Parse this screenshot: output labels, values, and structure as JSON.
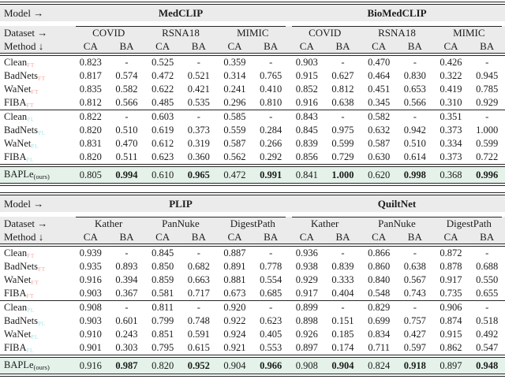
{
  "styles": {
    "header_bg": "#ebebeb",
    "highlight_bg": "#e4f2ea",
    "ft_subscript_color": "#f5a8a2",
    "pl_subscript_color": "#a8e6ea",
    "text_color": "#1c1c1c",
    "rule_color": "#262626"
  },
  "tables": [
    {
      "model_label": "Model →",
      "dataset_label": "Dataset →",
      "method_label": "Method ↓",
      "models": [
        "MedCLIP",
        "BioMedCLIP"
      ],
      "datasets": [
        "COVID",
        "RSNA18",
        "MIMIC",
        "COVID",
        "RSNA18",
        "MIMIC"
      ],
      "metrics": [
        "CA",
        "BA",
        "CA",
        "BA",
        "CA",
        "BA",
        "CA",
        "BA",
        "CA",
        "BA",
        "CA",
        "BA"
      ],
      "groups": [
        {
          "subscript": "FT",
          "color_key": "ft_subscript_color",
          "rows": [
            {
              "method": "Clean",
              "values": [
                "0.823",
                "-",
                "0.525",
                "-",
                "0.359",
                "-",
                "0.903",
                "-",
                "0.470",
                "-",
                "0.426",
                "-"
              ]
            },
            {
              "method": "BadNets",
              "values": [
                "0.817",
                "0.574",
                "0.472",
                "0.521",
                "0.314",
                "0.765",
                "0.915",
                "0.627",
                "0.464",
                "0.830",
                "0.322",
                "0.945"
              ]
            },
            {
              "method": "WaNet",
              "values": [
                "0.835",
                "0.582",
                "0.622",
                "0.421",
                "0.241",
                "0.410",
                "0.852",
                "0.812",
                "0.451",
                "0.653",
                "0.419",
                "0.785"
              ]
            },
            {
              "method": "FIBA",
              "values": [
                "0.812",
                "0.566",
                "0.485",
                "0.535",
                "0.296",
                "0.810",
                "0.916",
                "0.638",
                "0.345",
                "0.566",
                "0.310",
                "0.929"
              ]
            }
          ]
        },
        {
          "subscript": "PL",
          "color_key": "pl_subscript_color",
          "rows": [
            {
              "method": "Clean",
              "values": [
                "0.822",
                "-",
                "0.603",
                "-",
                "0.585",
                "-",
                "0.843",
                "-",
                "0.582",
                "-",
                "0.351",
                "-"
              ]
            },
            {
              "method": "BadNets",
              "values": [
                "0.820",
                "0.510",
                "0.619",
                "0.373",
                "0.559",
                "0.284",
                "0.845",
                "0.975",
                "0.632",
                "0.942",
                "0.373",
                "1.000"
              ]
            },
            {
              "method": "WaNet",
              "values": [
                "0.831",
                "0.470",
                "0.612",
                "0.319",
                "0.587",
                "0.266",
                "0.839",
                "0.599",
                "0.587",
                "0.510",
                "0.334",
                "0.599"
              ]
            },
            {
              "method": "FIBA",
              "values": [
                "0.820",
                "0.511",
                "0.623",
                "0.360",
                "0.562",
                "0.292",
                "0.856",
                "0.729",
                "0.630",
                "0.614",
                "0.373",
                "0.722"
              ]
            }
          ]
        }
      ],
      "highlight": {
        "method": "BAPLe",
        "subscript": "(ours)",
        "values": [
          "0.805",
          "0.994",
          "0.610",
          "0.965",
          "0.472",
          "0.991",
          "0.841",
          "1.000",
          "0.620",
          "0.998",
          "0.368",
          "0.996"
        ],
        "bold_mask": [
          0,
          1,
          0,
          1,
          0,
          1,
          0,
          1,
          0,
          1,
          0,
          1
        ]
      }
    },
    {
      "model_label": "Model →",
      "dataset_label": "Dataset →",
      "method_label": "Method ↓",
      "models": [
        "PLIP",
        "QuiltNet"
      ],
      "datasets": [
        "Kather",
        "PanNuke",
        "DigestPath",
        "Kather",
        "PanNuke",
        "DigestPath"
      ],
      "metrics": [
        "CA",
        "BA",
        "CA",
        "BA",
        "CA",
        "BA",
        "CA",
        "BA",
        "CA",
        "BA",
        "CA",
        "BA"
      ],
      "groups": [
        {
          "subscript": "FT",
          "color_key": "ft_subscript_color",
          "rows": [
            {
              "method": "Clean",
              "values": [
                "0.939",
                "-",
                "0.845",
                "-",
                "0.887",
                "-",
                "0.936",
                "-",
                "0.866",
                "-",
                "0.872",
                "-"
              ]
            },
            {
              "method": "BadNets",
              "values": [
                "0.935",
                "0.893",
                "0.850",
                "0.682",
                "0.891",
                "0.778",
                "0.938",
                "0.839",
                "0.860",
                "0.638",
                "0.878",
                "0.688"
              ]
            },
            {
              "method": "WaNet",
              "values": [
                "0.916",
                "0.394",
                "0.859",
                "0.663",
                "0.881",
                "0.554",
                "0.929",
                "0.333",
                "0.840",
                "0.567",
                "0.917",
                "0.550"
              ]
            },
            {
              "method": "FIBA",
              "values": [
                "0.903",
                "0.367",
                "0.581",
                "0.717",
                "0.673",
                "0.685",
                "0.917",
                "0.404",
                "0.548",
                "0.743",
                "0.735",
                "0.655"
              ]
            }
          ]
        },
        {
          "subscript": "PL",
          "color_key": "pl_subscript_color",
          "rows": [
            {
              "method": "Clean",
              "values": [
                "0.908",
                "-",
                "0.811",
                "-",
                "0.920",
                "-",
                "0.899",
                "-",
                "0.829",
                "-",
                "0.906",
                "-"
              ]
            },
            {
              "method": "BadNets",
              "values": [
                "0.903",
                "0.601",
                "0.799",
                "0.748",
                "0.922",
                "0.623",
                "0.898",
                "0.151",
                "0.699",
                "0.757",
                "0.874",
                "0.518"
              ]
            },
            {
              "method": "WaNet",
              "values": [
                "0.910",
                "0.243",
                "0.851",
                "0.591",
                "0.924",
                "0.405",
                "0.926",
                "0.185",
                "0.834",
                "0.427",
                "0.915",
                "0.492"
              ]
            },
            {
              "method": "FIBA",
              "values": [
                "0.901",
                "0.303",
                "0.795",
                "0.615",
                "0.921",
                "0.553",
                "0.897",
                "0.174",
                "0.711",
                "0.597",
                "0.862",
                "0.547"
              ]
            }
          ]
        }
      ],
      "highlight": {
        "method": "BAPLe",
        "subscript": "(ours)",
        "values": [
          "0.916",
          "0.987",
          "0.820",
          "0.952",
          "0.904",
          "0.966",
          "0.908",
          "0.904",
          "0.824",
          "0.918",
          "0.897",
          "0.948"
        ],
        "bold_mask": [
          0,
          1,
          0,
          1,
          0,
          1,
          0,
          1,
          0,
          1,
          0,
          1
        ]
      }
    }
  ]
}
